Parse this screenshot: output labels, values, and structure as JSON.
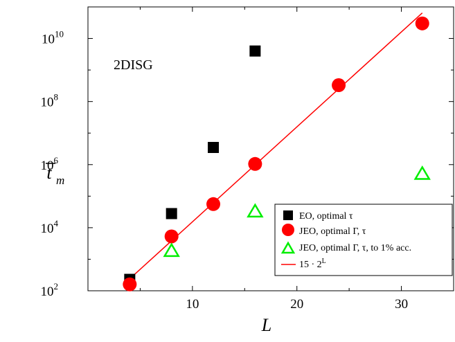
{
  "chart_data": {
    "type": "scatter",
    "title": "",
    "annotation": "2DISG",
    "xlabel": "L",
    "ylabel": "t",
    "ylabel_sub": "m",
    "xscale": "linear",
    "yscale": "log",
    "xlim": [
      0,
      35
    ],
    "ylim": [
      100,
      100000000000
    ],
    "xticks": [
      10,
      20,
      30
    ],
    "xtick_labels": [
      "10",
      "20",
      "30"
    ],
    "yticks": [
      100,
      10000,
      1000000,
      100000000,
      10000000000
    ],
    "ytick_labels": [
      {
        "base": "10",
        "exp": "2"
      },
      {
        "base": "10",
        "exp": "4"
      },
      {
        "base": "10",
        "exp": "6"
      },
      {
        "base": "10",
        "exp": "8"
      },
      {
        "base": "10",
        "exp": "10"
      }
    ],
    "grid": false,
    "legend_position": "bottom-right",
    "series": [
      {
        "name": "EO, optimal τ",
        "marker": "square",
        "color": "#000000",
        "x": [
          4,
          8,
          12,
          16
        ],
        "y": [
          230,
          28000,
          3500000,
          4000000000
        ]
      },
      {
        "name": "JEO, optimal Γ, τ",
        "marker": "circle",
        "color": "#ff0000",
        "x": [
          4,
          8,
          12,
          16,
          24,
          32
        ],
        "y": [
          160,
          5300,
          56000,
          1050000,
          330000000,
          30000000000
        ]
      },
      {
        "name": "JEO, optimal Γ, τ, to 1% acc.",
        "marker": "triangle-open",
        "color": "#00ee00",
        "x": [
          8,
          16,
          32
        ],
        "y": [
          1800,
          32000,
          500000
        ]
      }
    ],
    "fit_line": {
      "name": "15 · 2",
      "name_sup": "L",
      "color": "#ff0000",
      "prefactor": 15,
      "base": 2,
      "x_range": [
        4,
        32
      ]
    }
  }
}
